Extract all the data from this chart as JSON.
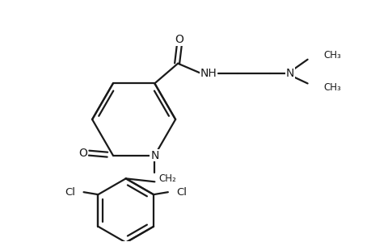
{
  "background": "#ffffff",
  "line_color": "#1a1a1a",
  "line_width": 1.6,
  "figsize": [
    4.6,
    3.0
  ],
  "dpi": 100,
  "xlim": [
    0,
    460
  ],
  "ylim": [
    0,
    300
  ]
}
